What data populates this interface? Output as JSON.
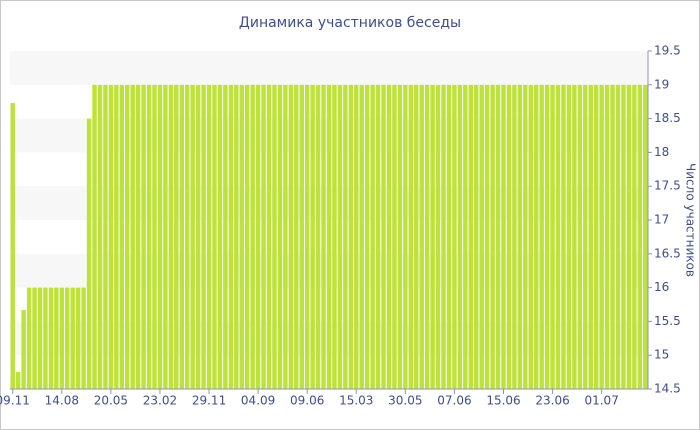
{
  "chart_data": {
    "type": "bar",
    "title": "Динамика участников беседы",
    "y_axis_label": "Число участников",
    "categories": [
      "09.11",
      null,
      null,
      null,
      null,
      null,
      null,
      null,
      null,
      "14.08",
      null,
      null,
      null,
      null,
      null,
      null,
      null,
      null,
      "20.05",
      null,
      null,
      null,
      null,
      null,
      null,
      null,
      null,
      "23.02",
      null,
      null,
      null,
      null,
      null,
      null,
      null,
      null,
      "29.11",
      null,
      null,
      null,
      null,
      null,
      null,
      null,
      null,
      "04.09",
      null,
      null,
      null,
      null,
      null,
      null,
      null,
      null,
      "09.06",
      null,
      null,
      null,
      null,
      null,
      null,
      null,
      null,
      "15.03",
      null,
      null,
      null,
      null,
      null,
      null,
      null,
      null,
      "30.05",
      null,
      null,
      null,
      null,
      null,
      null,
      null,
      null,
      "07.06",
      null,
      null,
      null,
      null,
      null,
      null,
      null,
      null,
      "15.06",
      null,
      null,
      null,
      null,
      null,
      null,
      null,
      null,
      "23.06",
      null,
      null,
      null,
      null,
      null,
      null,
      null,
      null,
      "01.07",
      null,
      null,
      null,
      null,
      null,
      null,
      null,
      null
    ],
    "values": [
      18.73,
      14.75,
      15.67,
      16,
      16,
      16,
      16,
      16,
      16,
      16,
      16,
      16,
      16,
      16,
      18.5,
      19,
      19,
      19,
      19,
      19,
      19,
      19,
      19,
      19,
      19,
      19,
      19,
      19,
      19,
      19,
      19,
      19,
      19,
      19,
      19,
      19,
      19,
      19,
      19,
      19,
      19,
      19,
      19,
      19,
      19,
      19,
      19,
      19,
      19,
      19,
      19,
      19,
      19,
      19,
      19,
      19,
      19,
      19,
      19,
      19,
      19,
      19,
      19,
      19,
      19,
      19,
      19,
      19,
      19,
      19,
      19,
      19,
      19,
      19,
      19,
      19,
      19,
      19,
      19,
      19,
      19,
      19,
      19,
      19,
      19,
      19,
      19,
      19,
      19,
      19,
      19,
      19,
      19,
      19,
      19,
      19,
      19,
      19,
      19,
      19,
      19,
      19,
      19,
      19,
      19,
      19,
      19,
      19,
      19,
      19,
      19,
      19,
      19,
      19,
      19,
      19,
      19
    ],
    "color": "#bde23a",
    "ylim": [
      14.5,
      19.5
    ],
    "yticks": [
      14.5,
      15,
      15.5,
      16,
      16.5,
      17,
      17.5,
      18,
      18.5,
      19,
      19.5
    ],
    "yaxis_side": "right",
    "grid": "bands"
  }
}
